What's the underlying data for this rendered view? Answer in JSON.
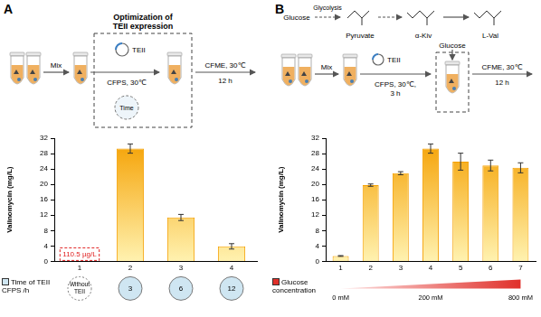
{
  "schematics": [
    {
      "label": "A",
      "mix": "Mix",
      "plasmid": "TEII",
      "box_title": "Optimization of TEII expression",
      "step1": "CFPS, 30℃",
      "clock": "Time",
      "step2": "CFME, 30℃",
      "step2_time": "12 h"
    },
    {
      "label": "B",
      "pathway": [
        "Glucose",
        "Pyruvate",
        "α-Kiv",
        "L-Val"
      ],
      "pathway_step": "Glycolysis",
      "mix": "Mix",
      "plasmid": "TEII",
      "step1": "CFPS, 30℃,",
      "step1_time": "3 h",
      "added": "Glucose",
      "step2": "CFME, 30℃",
      "step2_time": "12 h"
    }
  ],
  "chart_data": [
    {
      "type": "bar",
      "categories": [
        "1",
        "2",
        "3",
        "4"
      ],
      "values": [
        0.1105,
        29.3,
        11.4,
        3.9
      ],
      "errors": [
        null,
        1.2,
        0.8,
        0.7
      ],
      "color": "#f5a000",
      "y_label": "Valinomycin (mg/L)",
      "ylim": [
        0,
        32
      ],
      "yticks": [
        0,
        4,
        8,
        12,
        16,
        20,
        24,
        28,
        32
      ],
      "grid": false,
      "annotations": [
        {
          "category": "1",
          "text": "110.5 µg/L"
        }
      ],
      "x_annotation": {
        "title": "Time of TEII CFPS /h",
        "labels": [
          "Without TEII",
          "3",
          "6",
          "12"
        ]
      }
    },
    {
      "type": "bar",
      "categories": [
        "1",
        "2",
        "3",
        "4",
        "5",
        "6",
        "7"
      ],
      "values": [
        1.4,
        19.8,
        22.9,
        29.3,
        25.9,
        24.9,
        24.3
      ],
      "errors": [
        0.1,
        0.3,
        0.4,
        1.2,
        2.2,
        1.4,
        1.3
      ],
      "color": "#f5a000",
      "y_label": "Valinomycin (mg/L)",
      "ylim": [
        0,
        32
      ],
      "yticks": [
        0,
        4,
        8,
        12,
        16,
        20,
        24,
        28,
        32
      ],
      "grid": false,
      "x_annotation": {
        "title": "Glucose concentration",
        "labels": [
          "0 mM",
          null,
          null,
          "200 mM",
          null,
          null,
          "800 mM"
        ]
      }
    }
  ]
}
